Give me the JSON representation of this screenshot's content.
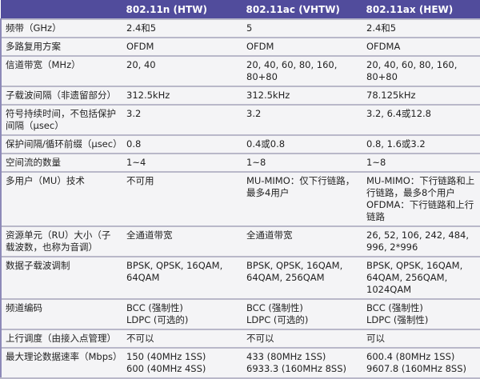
{
  "header": [
    "",
    "802.11n (HTW)",
    "802.11ac (VHTW)",
    "802.11ax (HEW)"
  ],
  "rows": [
    [
      "频带（GHz）",
      "2.4和5",
      "5",
      "2.4和5"
    ],
    [
      "多路复用方案",
      "OFDM",
      "OFDM",
      "OFDMA"
    ],
    [
      "信道带宽（MHz）",
      "20, 40",
      "20, 40, 60, 80, 160,\n80+80",
      "20, 40, 60, 80, 160,\n80+80"
    ],
    [
      "子载波间隔（非遗留部分）",
      "312.5kHz",
      "312.5kHz",
      "78.125kHz"
    ],
    [
      "符号持续时间，不包括保护间隔（μsec）",
      "3.2",
      "3.2",
      "3.2, 6.4或12.8"
    ],
    [
      "保护间隔/循环前缀（μsec）",
      "0.8",
      "0.4或0.8",
      "0.8, 1.6或3.2"
    ],
    [
      "空间流的数量",
      "1~4",
      "1~8",
      "1~8"
    ],
    [
      "多用户（MU）技术",
      "不可用",
      "MU-MIMO：仅下行链路，最多4用户",
      "MU-MIMO：下行链路和上行链路，最多8个用户\nOFDMA：下行链路和上行链路"
    ],
    [
      "资源单元（RU）大小（子载波数，也称为音调）",
      "全通道带宽",
      "全通道带宽",
      "26, 52, 106, 242, 484,\n996, 2*996"
    ],
    [
      "数据子载波调制",
      "BPSK, QPSK, 16QAM,\n64QAM",
      "BPSK, QPSK, 16QAM,\n64QAM, 256QAM",
      "BPSK, QPSK, 16QAM,\n64QAM, 256QAM,\n1024QAM"
    ],
    [
      "频道编码",
      "BCC (强制性)\nLDPC (可选的)",
      "BCC (强制性)\nLDPC (可选的)",
      "BCC (强制性)\nLDPC (强制性)"
    ],
    [
      "上行调度（由接入点管理）",
      "不可以",
      "不可以",
      "可以"
    ],
    [
      "最大理论数据速率（Mbps）",
      "150 (40MHz 1SS)\n600 (40MHz 4SS)",
      "433 (80MHz 1SS)\n6933.3  (160MHz 8SS)",
      "600.4 (80MHz 1SS)\n9607.8 (160MHz 8SS)"
    ]
  ]
}
